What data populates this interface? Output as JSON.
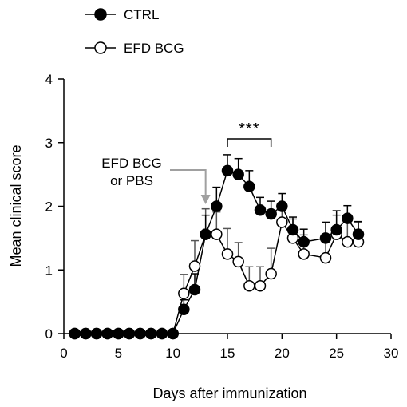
{
  "chart_data": {
    "type": "line",
    "xlabel": "Days after immunization",
    "ylabel": "Mean clinical score",
    "xlim": [
      0,
      30
    ],
    "ylim": [
      0,
      4
    ],
    "xticks": [
      0,
      5,
      10,
      15,
      20,
      25,
      30
    ],
    "yticks": [
      0,
      1,
      2,
      3,
      4
    ],
    "xtick_labels": [
      "0",
      "5",
      "10",
      "15",
      "20",
      "25",
      "30"
    ],
    "ytick_labels": [
      "0",
      "1",
      "2",
      "3",
      "4"
    ],
    "grid": false,
    "legend_position": "top-left",
    "series": [
      {
        "name": "CTRL",
        "marker": "filled-circle",
        "color": "#000000",
        "x": [
          1,
          2,
          3,
          4,
          5,
          6,
          7,
          8,
          9,
          10,
          11,
          12,
          13,
          14,
          15,
          16,
          17,
          18,
          19,
          20,
          21,
          22,
          24,
          25,
          26,
          27
        ],
        "y": [
          0,
          0,
          0,
          0,
          0,
          0,
          0,
          0,
          0,
          0,
          0.38,
          0.69,
          1.56,
          2.0,
          2.56,
          2.5,
          2.31,
          1.94,
          1.88,
          2.0,
          1.63,
          1.44,
          1.5,
          1.63,
          1.81,
          1.56
        ],
        "error": [
          0,
          0,
          0,
          0,
          0,
          0,
          0,
          0,
          0,
          0,
          0.15,
          0.25,
          0.3,
          0.3,
          0.25,
          0.25,
          0.25,
          0.2,
          0.2,
          0.2,
          0.2,
          0.2,
          0.25,
          0.3,
          0.2,
          0.2
        ]
      },
      {
        "name": "EFD BCG",
        "marker": "open-circle",
        "color": "#000000",
        "x": [
          1,
          2,
          3,
          4,
          5,
          6,
          7,
          8,
          9,
          10,
          11,
          12,
          13,
          14,
          15,
          16,
          17,
          18,
          19,
          20,
          21,
          22,
          24,
          25,
          26,
          27
        ],
        "y": [
          0,
          0,
          0,
          0,
          0,
          0,
          0,
          0,
          0,
          0,
          0.63,
          1.06,
          1.56,
          1.56,
          1.25,
          1.13,
          0.75,
          0.75,
          0.94,
          1.75,
          1.5,
          1.25,
          1.19,
          1.56,
          1.44,
          1.44
        ],
        "error": [
          0,
          0,
          0,
          0,
          0,
          0,
          0,
          0,
          0,
          0,
          0.3,
          0.4,
          0.4,
          0.35,
          0.4,
          0.3,
          0.3,
          0.3,
          0.4,
          0.3,
          0.3,
          0.3,
          0.3,
          0.3,
          0.3,
          0.3
        ]
      }
    ],
    "annotations": [
      {
        "text_lines": [
          "EFD BCG",
          "or PBS"
        ],
        "arrow_x": 13,
        "arrow_color": "#a0a0a0"
      },
      {
        "text": "***",
        "bracket_from": 15,
        "bracket_to": 19
      }
    ]
  }
}
